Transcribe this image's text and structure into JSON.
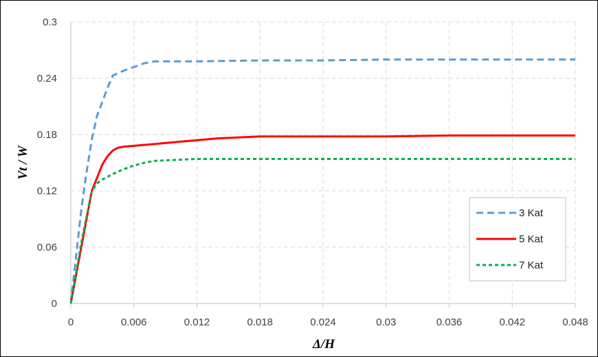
{
  "chart_data": {
    "type": "line",
    "xlabel": "Δ/H",
    "ylabel": "Vt / W",
    "xlim": [
      0,
      0.048
    ],
    "ylim": [
      0,
      0.3
    ],
    "x_ticks": [
      "0",
      "0.006",
      "0.012",
      "0.018",
      "0.024",
      "0.03",
      "0.036",
      "0.042",
      "0.048"
    ],
    "y_ticks": [
      "0",
      "0.06",
      "0.12",
      "0.18",
      "0.24",
      "0.3"
    ],
    "grid": true,
    "legend_position": "bottom-right",
    "series": [
      {
        "name": "3 Kat",
        "color": "#5b9bd5",
        "dash": "dashed",
        "x": [
          0,
          0.0005,
          0.001,
          0.0015,
          0.002,
          0.0025,
          0.003,
          0.0035,
          0.004,
          0.005,
          0.006,
          0.007,
          0.008,
          0.009,
          0.012,
          0.018,
          0.024,
          0.03,
          0.036,
          0.042,
          0.048
        ],
        "y": [
          0,
          0.05,
          0.1,
          0.14,
          0.175,
          0.2,
          0.215,
          0.23,
          0.243,
          0.248,
          0.252,
          0.256,
          0.258,
          0.258,
          0.258,
          0.259,
          0.259,
          0.26,
          0.26,
          0.26,
          0.26
        ]
      },
      {
        "name": "5 Kat",
        "color": "#ff0000",
        "dash": "solid",
        "x": [
          0,
          0.001,
          0.002,
          0.003,
          0.0035,
          0.004,
          0.0045,
          0.005,
          0.006,
          0.008,
          0.01,
          0.012,
          0.014,
          0.016,
          0.018,
          0.024,
          0.03,
          0.036,
          0.042,
          0.048
        ],
        "y": [
          0,
          0.06,
          0.12,
          0.148,
          0.157,
          0.163,
          0.166,
          0.167,
          0.168,
          0.17,
          0.172,
          0.174,
          0.176,
          0.177,
          0.178,
          0.178,
          0.178,
          0.179,
          0.179,
          0.179
        ]
      },
      {
        "name": "7 Kat",
        "color": "#00b050",
        "dash": "dotted",
        "x": [
          0,
          0.001,
          0.002,
          0.0025,
          0.003,
          0.004,
          0.005,
          0.006,
          0.007,
          0.008,
          0.01,
          0.012,
          0.018,
          0.024,
          0.03,
          0.036,
          0.042,
          0.048
        ],
        "y": [
          0,
          0.065,
          0.12,
          0.128,
          0.132,
          0.138,
          0.143,
          0.147,
          0.15,
          0.152,
          0.153,
          0.154,
          0.154,
          0.154,
          0.154,
          0.154,
          0.154,
          0.154
        ]
      }
    ]
  }
}
